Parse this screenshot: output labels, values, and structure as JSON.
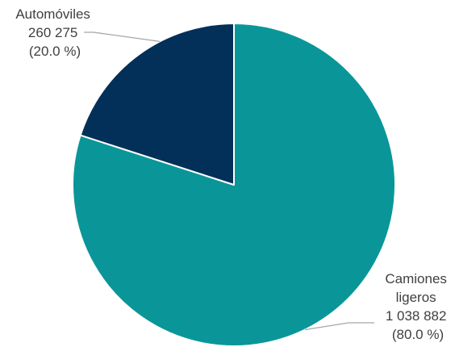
{
  "chart_data": {
    "type": "pie",
    "title": "",
    "slices": [
      {
        "category": "Camiones ligeros",
        "label_lines": [
          "Camiones",
          "ligeros"
        ],
        "value": 1038882,
        "value_label": "1 038 882",
        "percent_label": "(80.0 %)",
        "color": "#0a9699"
      },
      {
        "category": "Automóviles",
        "label_lines": [
          "Automóviles"
        ],
        "value": 260275,
        "value_label": "260 275",
        "percent_label": "(20.0 %)",
        "color": "#023059"
      }
    ],
    "start": "12 o'clock",
    "direction": "clockwise",
    "legend": "none",
    "label_color": "#404040",
    "leader_line_color": "#a6a6a6"
  }
}
